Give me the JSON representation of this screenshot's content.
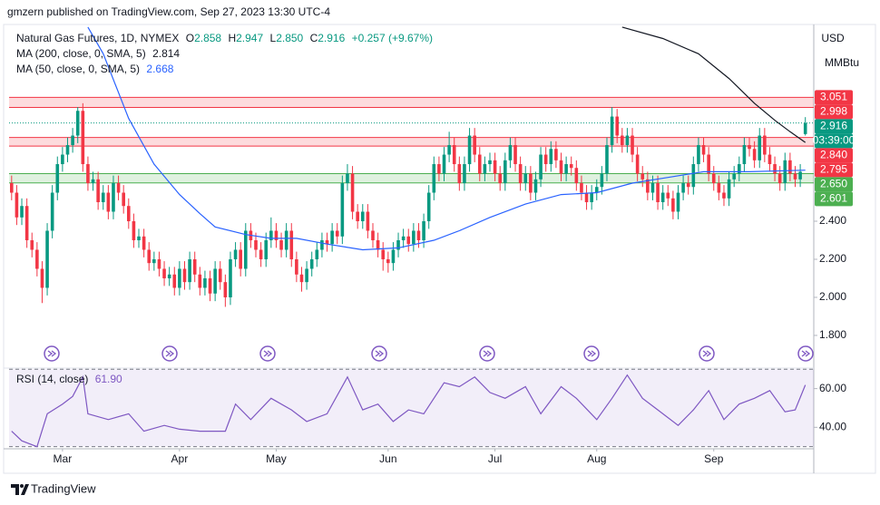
{
  "header": {
    "publisher": "gmzern published on TradingView.com, Sep 27, 2023 13:30 UTC-4"
  },
  "footer": {
    "brand": "TradingView"
  },
  "chart_data": [
    {
      "type": "candlestick",
      "title": "Natural Gas Futures, 1D, NYMEX",
      "currency": "USD",
      "unit": "MMBtu",
      "countdown": "03:39:00",
      "ohlc_labels": [
        "O",
        "H",
        "L",
        "C"
      ],
      "change_label": "+0.257 (+9.67%)",
      "up_color": "#089981",
      "down_color": "#f23645",
      "xlim": [
        -0.5,
        157.3
      ],
      "xticks": [
        {
          "value": 10,
          "label": "Mar"
        },
        {
          "value": 33,
          "label": "Apr"
        },
        {
          "value": 52,
          "label": "May"
        },
        {
          "value": 74,
          "label": "Jun"
        },
        {
          "value": 95,
          "label": "Jul"
        },
        {
          "value": 115,
          "label": "Aug"
        },
        {
          "value": 138,
          "label": "Sep"
        }
      ],
      "ylim": [
        1.633,
        3.429
      ],
      "yticks": [
        {
          "value": 1.8,
          "label": "1.800"
        },
        {
          "value": 2,
          "label": "2.000"
        },
        {
          "value": 2.2,
          "label": "2.200"
        },
        {
          "value": 2.4,
          "label": "2.400"
        }
      ],
      "zones": [
        {
          "from": 2.998,
          "to": 3.051,
          "color": "#f23645"
        },
        {
          "from": 2.795,
          "to": {
            "value": 2.84,
            "label": "2.840"
          },
          "color": "#f23645"
        },
        {
          "from": 2.601,
          "to": {
            "value": 2.65,
            "label": "2.650"
          },
          "color": "#4caf50"
        }
      ],
      "series": [
        {
          "name": "Natural Gas Futures",
          "legend_labels": [
            "2.858",
            "2.947",
            "2.850",
            "2.916"
          ],
          "open": [
            2.6,
            2.55,
            2.42,
            2.48,
            2.3,
            2.25,
            2.15,
            2.05,
            2.35,
            2.55,
            2.7,
            2.75,
            2.8,
            2.85,
            2.98,
            2.7,
            2.6,
            2.62,
            2.5,
            2.55,
            2.45,
            2.6,
            2.55,
            2.48,
            2.4,
            2.3,
            2.32,
            2.25,
            2.18,
            2.2,
            2.15,
            2.1,
            2.12,
            2.05,
            2.15,
            2.08,
            2.2,
            2.12,
            2.05,
            2.1,
            2.02,
            2.15,
            2.08,
            2.0,
            2.2,
            2.25,
            2.15,
            2.35,
            2.3,
            2.25,
            2.2,
            2.3,
            2.35,
            2.3,
            2.25,
            2.35,
            2.2,
            2.12,
            2.08,
            2.15,
            2.2,
            2.25,
            2.3,
            2.28,
            2.35,
            2.32,
            2.6,
            2.65,
            2.45,
            2.4,
            2.45,
            2.35,
            2.3,
            2.25,
            2.2,
            2.18,
            2.25,
            2.3,
            2.32,
            2.28,
            2.35,
            2.3,
            2.4,
            2.55,
            2.7,
            2.65,
            2.75,
            2.8,
            2.7,
            2.6,
            2.7,
            2.85,
            2.75,
            2.65,
            2.7,
            2.72,
            2.65,
            2.6,
            2.72,
            2.8,
            2.7,
            2.6,
            2.65,
            2.55,
            2.62,
            2.75,
            2.7,
            2.78,
            2.72,
            2.65,
            2.7,
            2.68,
            2.6,
            2.55,
            2.5,
            2.55,
            2.58,
            2.65,
            2.8,
            2.95,
            2.85,
            2.8,
            2.85,
            2.75,
            2.65,
            2.62,
            2.55,
            2.6,
            2.5,
            2.55,
            2.52,
            2.45,
            2.55,
            2.6,
            2.58,
            2.7,
            2.8,
            2.75,
            2.65,
            2.6,
            2.55,
            2.52,
            2.62,
            2.65,
            2.7,
            2.8,
            2.78,
            2.72,
            2.85,
            2.75,
            2.7,
            2.65,
            2.6,
            2.72,
            2.65,
            2.62,
            2.858
          ],
          "high": [
            2.64,
            2.59,
            2.52,
            2.52,
            2.34,
            2.29,
            2.19,
            2.39,
            2.59,
            2.74,
            2.79,
            2.84,
            2.89,
            3.0,
            3.02,
            2.74,
            2.66,
            2.66,
            2.59,
            2.59,
            2.64,
            2.64,
            2.59,
            2.52,
            2.44,
            2.36,
            2.36,
            2.29,
            2.24,
            2.24,
            2.19,
            2.16,
            2.16,
            2.19,
            2.19,
            2.24,
            2.24,
            2.16,
            2.14,
            2.14,
            2.19,
            2.19,
            2.12,
            2.24,
            2.29,
            2.29,
            2.39,
            2.39,
            2.34,
            2.29,
            2.34,
            2.42,
            2.39,
            2.34,
            2.39,
            2.39,
            2.24,
            2.16,
            2.19,
            2.24,
            2.29,
            2.34,
            2.34,
            2.39,
            2.39,
            2.64,
            2.7,
            2.69,
            2.49,
            2.49,
            2.49,
            2.39,
            2.34,
            2.29,
            2.24,
            2.29,
            2.34,
            2.36,
            2.36,
            2.39,
            2.39,
            2.44,
            2.59,
            2.74,
            2.74,
            2.79,
            2.87,
            2.84,
            2.74,
            2.74,
            2.89,
            2.89,
            2.79,
            2.74,
            2.76,
            2.76,
            2.69,
            2.76,
            2.84,
            2.84,
            2.74,
            2.69,
            2.69,
            2.66,
            2.79,
            2.79,
            2.82,
            2.82,
            2.76,
            2.74,
            2.74,
            2.72,
            2.64,
            2.59,
            2.59,
            2.62,
            2.69,
            2.84,
            3.0,
            2.99,
            2.89,
            2.89,
            2.89,
            2.79,
            2.69,
            2.66,
            2.64,
            2.64,
            2.59,
            2.59,
            2.56,
            2.59,
            2.64,
            2.64,
            2.74,
            2.84,
            2.84,
            2.79,
            2.69,
            2.64,
            2.59,
            2.66,
            2.69,
            2.74,
            2.84,
            2.84,
            2.82,
            2.89,
            2.89,
            2.79,
            2.74,
            2.69,
            2.76,
            2.76,
            2.69,
            2.7,
            2.947
          ],
          "low": [
            2.51,
            2.38,
            2.38,
            2.26,
            2.21,
            2.11,
            1.97,
            2.01,
            2.31,
            2.51,
            2.66,
            2.71,
            2.76,
            2.81,
            2.66,
            2.56,
            2.56,
            2.46,
            2.46,
            2.41,
            2.41,
            2.51,
            2.44,
            2.36,
            2.26,
            2.26,
            2.21,
            2.14,
            2.14,
            2.11,
            2.06,
            2.06,
            2.01,
            2.01,
            2.04,
            2.04,
            2.08,
            2.01,
            2.01,
            1.98,
            1.98,
            2.04,
            1.95,
            1.96,
            2.16,
            2.11,
            2.11,
            2.26,
            2.21,
            2.16,
            2.16,
            2.26,
            2.26,
            2.21,
            2.21,
            2.16,
            2.08,
            2.03,
            2.04,
            2.11,
            2.16,
            2.21,
            2.24,
            2.24,
            2.28,
            2.28,
            2.56,
            2.41,
            2.36,
            2.36,
            2.31,
            2.26,
            2.21,
            2.14,
            2.13,
            2.14,
            2.21,
            2.26,
            2.24,
            2.24,
            2.26,
            2.26,
            2.36,
            2.51,
            2.61,
            2.61,
            2.71,
            2.66,
            2.56,
            2.56,
            2.66,
            2.71,
            2.61,
            2.61,
            2.66,
            2.61,
            2.56,
            2.56,
            2.68,
            2.66,
            2.56,
            2.56,
            2.51,
            2.51,
            2.58,
            2.66,
            2.66,
            2.68,
            2.61,
            2.61,
            2.64,
            2.56,
            2.51,
            2.46,
            2.46,
            2.51,
            2.54,
            2.61,
            2.76,
            2.81,
            2.76,
            2.76,
            2.71,
            2.61,
            2.58,
            2.51,
            2.51,
            2.46,
            2.46,
            2.48,
            2.41,
            2.41,
            2.51,
            2.54,
            2.54,
            2.66,
            2.71,
            2.61,
            2.56,
            2.51,
            2.48,
            2.48,
            2.58,
            2.61,
            2.66,
            2.74,
            2.68,
            2.68,
            2.71,
            2.66,
            2.61,
            2.56,
            2.56,
            2.61,
            2.58,
            2.58,
            2.85
          ],
          "close": [
            2.55,
            2.42,
            2.48,
            2.3,
            2.25,
            2.15,
            2.05,
            2.35,
            2.55,
            2.7,
            2.75,
            2.8,
            2.85,
            2.98,
            2.7,
            2.6,
            2.62,
            2.5,
            2.55,
            2.45,
            2.6,
            2.55,
            2.48,
            2.4,
            2.3,
            2.32,
            2.25,
            2.18,
            2.2,
            2.15,
            2.1,
            2.12,
            2.05,
            2.15,
            2.08,
            2.2,
            2.12,
            2.05,
            2.1,
            2.02,
            2.15,
            2.08,
            2.0,
            2.2,
            2.25,
            2.15,
            2.35,
            2.3,
            2.25,
            2.2,
            2.3,
            2.35,
            2.3,
            2.25,
            2.35,
            2.2,
            2.12,
            2.08,
            2.15,
            2.2,
            2.25,
            2.3,
            2.28,
            2.35,
            2.32,
            2.6,
            2.65,
            2.45,
            2.4,
            2.45,
            2.35,
            2.3,
            2.25,
            2.2,
            2.18,
            2.25,
            2.3,
            2.32,
            2.28,
            2.35,
            2.3,
            2.4,
            2.55,
            2.7,
            2.65,
            2.75,
            2.8,
            2.7,
            2.6,
            2.7,
            2.85,
            2.75,
            2.65,
            2.7,
            2.72,
            2.65,
            2.6,
            2.72,
            2.8,
            2.7,
            2.6,
            2.65,
            2.55,
            2.62,
            2.75,
            2.7,
            2.78,
            2.72,
            2.65,
            2.7,
            2.68,
            2.6,
            2.55,
            2.5,
            2.55,
            2.58,
            2.65,
            2.8,
            2.95,
            2.85,
            2.8,
            2.85,
            2.75,
            2.65,
            2.62,
            2.55,
            2.6,
            2.5,
            2.55,
            2.52,
            2.45,
            2.55,
            2.6,
            2.58,
            2.7,
            2.8,
            2.75,
            2.65,
            2.6,
            2.55,
            2.52,
            2.62,
            2.65,
            2.7,
            2.8,
            2.78,
            2.72,
            2.85,
            2.75,
            2.7,
            2.65,
            2.6,
            2.72,
            2.65,
            2.62,
            2.66,
            2.916
          ]
        },
        {
          "name": "MA (200, close, 0, SMA, 5)",
          "color": "#131722",
          "x": [
            120,
            128,
            135,
            141,
            146,
            150,
            153,
            156
          ],
          "values": [
            3.42,
            3.36,
            3.28,
            3.15,
            3.02,
            2.93,
            2.87,
            2.814
          ]
        },
        {
          "name": "MA (50, close, 0, SMA, 5)",
          "color": "#2962ff",
          "x": [
            15,
            18,
            23,
            28,
            33,
            37,
            40,
            46,
            51,
            56,
            62,
            69,
            76,
            83,
            88,
            94,
            101,
            108,
            115,
            122,
            129,
            136,
            145,
            156
          ],
          "values": [
            3.42,
            3.28,
            2.94,
            2.7,
            2.54,
            2.44,
            2.37,
            2.33,
            2.31,
            2.31,
            2.28,
            2.25,
            2.26,
            2.3,
            2.35,
            2.42,
            2.49,
            2.54,
            2.55,
            2.6,
            2.63,
            2.66,
            2.66,
            2.668
          ]
        }
      ]
    },
    {
      "type": "line",
      "ylim": [
        28.9,
        70.6
      ],
      "yticks": [
        {
          "value": 40,
          "label": "40.00"
        },
        {
          "value": 60,
          "label": "60.00"
        }
      ],
      "bands": [
        30,
        70
      ],
      "series": [
        {
          "name": "RSI (14, close)",
          "color": "#7e57c2",
          "last_label": "61.90",
          "x": [
            0,
            2,
            5,
            7,
            10,
            12,
            14,
            15,
            19,
            23,
            26,
            30,
            33,
            37,
            42,
            44,
            47,
            51,
            55,
            58,
            62,
            66,
            69,
            72,
            75,
            78,
            81,
            85,
            88,
            91,
            94,
            97,
            101,
            104,
            108,
            111,
            115,
            118,
            121,
            124,
            127,
            131,
            134,
            137,
            140,
            143,
            146,
            149,
            152,
            154,
            156
          ],
          "values": [
            38,
            33,
            30,
            47,
            52,
            56,
            66,
            47,
            44,
            47,
            38,
            41,
            39,
            38,
            38,
            52,
            44,
            55,
            49,
            43,
            47,
            66,
            49,
            52,
            43,
            49,
            47,
            63,
            61,
            66,
            58,
            55,
            61,
            47,
            61,
            55,
            44,
            55,
            67,
            55,
            49,
            41,
            49,
            59,
            44,
            52,
            55,
            59,
            48,
            49,
            61.9
          ]
        }
      ]
    }
  ]
}
